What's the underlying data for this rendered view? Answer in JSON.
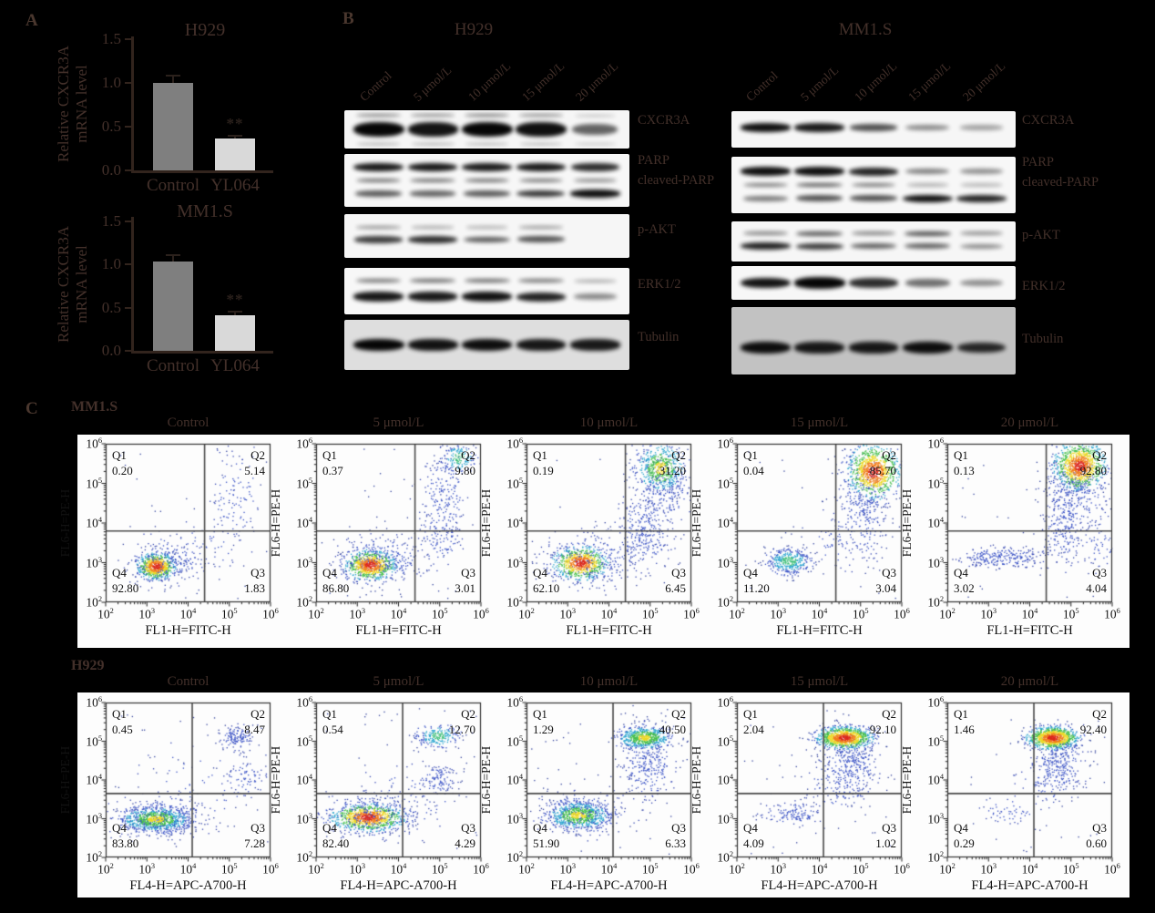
{
  "figure": {
    "panels": {
      "a": "A",
      "b": "B",
      "c": "C"
    }
  },
  "colors": {
    "background": "#000000",
    "figure_text_brown": "#43302a",
    "bar_control": "#7f7f7f",
    "bar_treated": "#d9d9d9",
    "axis_line": "#32241d",
    "plot_text": "#121212",
    "quadrant_line": "#4a4a4a",
    "density_hot_core": "#dc2a1e",
    "density_cold": "#3c54c6"
  },
  "panel_a": {
    "ylabel_line1": "Relative CXCR3A",
    "ylabel_line2": "mRNA level",
    "yticks": [
      "0.0",
      "0.5",
      "1.0",
      "1.5"
    ],
    "significance": "**"
  },
  "chart_data": [
    {
      "type": "bar",
      "title": "H929",
      "ylabel": "Relative CXCR3A mRNA level",
      "categories": [
        "Control",
        "YL064"
      ],
      "values": [
        1.0,
        0.36
      ],
      "errors": [
        0.07,
        0.03
      ],
      "annotations": [
        "",
        "**"
      ],
      "ylim": [
        0,
        1.5
      ],
      "yticks": [
        0.0,
        0.5,
        1.0,
        1.5
      ]
    },
    {
      "type": "bar",
      "title": "MM1.S",
      "ylabel": "Relative CXCR3A mRNA level",
      "categories": [
        "Control",
        "YL064"
      ],
      "values": [
        1.03,
        0.41
      ],
      "errors": [
        0.07,
        0.03
      ],
      "annotations": [
        "",
        "**"
      ],
      "ylim": [
        0,
        1.5
      ],
      "yticks": [
        0.0,
        0.5,
        1.0,
        1.5
      ]
    },
    {
      "type": "scatter",
      "cell_line": "MM1.S",
      "xlabel": "FL1-H=FITC-H",
      "ylabel": "FL6-H=PE-H",
      "xscale": "log",
      "yscale": "log",
      "xlim": [
        100,
        1000000
      ],
      "ylim": [
        100,
        1000000
      ],
      "tick_exponents": [
        2,
        3,
        4,
        5,
        6
      ],
      "plots": [
        {
          "condition": "Control",
          "quadrants": {
            "Q1": "0.20",
            "Q2": "5.14",
            "Q3": "1.83",
            "Q4": "92.80"
          }
        },
        {
          "condition": "5 μmol/L",
          "quadrants": {
            "Q1": "0.37",
            "Q2": "9.80",
            "Q3": "3.01",
            "Q4": "86.80"
          }
        },
        {
          "condition": "10 μmol/L",
          "quadrants": {
            "Q1": "0.19",
            "Q2": "31.20",
            "Q3": "6.45",
            "Q4": "62.10"
          }
        },
        {
          "condition": "15 μmol/L",
          "quadrants": {
            "Q1": "0.04",
            "Q2": "85.70",
            "Q3": "3.04",
            "Q4": "11.20"
          }
        },
        {
          "condition": "20 μmol/L",
          "quadrants": {
            "Q1": "0.13",
            "Q2": "92.80",
            "Q3": "4.04",
            "Q4": "3.02"
          }
        }
      ]
    },
    {
      "type": "scatter",
      "cell_line": "H929",
      "xlabel": "FL4-H=APC-A700-H",
      "ylabel": "FL6-H=PE-H",
      "xscale": "log",
      "yscale": "log",
      "xlim": [
        100,
        1000000
      ],
      "ylim": [
        100,
        1000000
      ],
      "tick_exponents": [
        2,
        3,
        4,
        5,
        6
      ],
      "plots": [
        {
          "condition": "Control",
          "quadrants": {
            "Q1": "0.45",
            "Q2": "8.47",
            "Q3": "7.28",
            "Q4": "83.80"
          }
        },
        {
          "condition": "5 μmol/L",
          "quadrants": {
            "Q1": "0.54",
            "Q2": "12.70",
            "Q3": "4.29",
            "Q4": "82.40"
          }
        },
        {
          "condition": "10 μmol/L",
          "quadrants": {
            "Q1": "1.29",
            "Q2": "40.50",
            "Q3": "6.33",
            "Q4": "51.90"
          }
        },
        {
          "condition": "15 μmol/L",
          "quadrants": {
            "Q1": "2.04",
            "Q2": "92.10",
            "Q3": "1.02",
            "Q4": "4.09"
          }
        },
        {
          "condition": "20 μmol/L",
          "quadrants": {
            "Q1": "1.46",
            "Q2": "92.40",
            "Q3": "0.60",
            "Q4": "0.29"
          }
        }
      ]
    }
  ],
  "panel_b": {
    "blots": [
      {
        "title": "H929",
        "lane_labels": [
          "Control",
          "5 μmol/L",
          "10 μmol/L",
          "15 μmol/L",
          "20 μmol/L"
        ],
        "proteins": [
          "CXCR3A",
          "PARP",
          "cleaved-PARP",
          "p-AKT",
          "ERK1/2",
          "Tubulin"
        ],
        "strips": [
          {
            "bands": [
              {
                "oy": 0.5,
                "th": 15,
                "int": [
                  1,
                  0.92,
                  1,
                  0.95,
                  0.5
                ]
              },
              {
                "oy": 0.14,
                "th": 4,
                "int": [
                  0.4,
                  0.35,
                  0.45,
                  0.35,
                  0.1
                ]
              },
              {
                "oy": 0.88,
                "th": 3,
                "int": [
                  0.25,
                  0.25,
                  0.2,
                  0.2,
                  0.05
                ]
              }
            ]
          },
          {
            "bands": [
              {
                "oy": 0.25,
                "th": 9,
                "int": [
                  0.9,
                  0.9,
                  0.88,
                  0.9,
                  0.8
                ]
              },
              {
                "oy": 0.5,
                "th": 6,
                "int": [
                  0.45,
                  0.45,
                  0.45,
                  0.4,
                  0.3
                ]
              },
              {
                "oy": 0.75,
                "th": 8,
                "int": [
                  0.55,
                  0.5,
                  0.55,
                  0.75,
                  0.95
                ]
              }
            ]
          },
          {
            "bands": [
              {
                "oy": 0.3,
                "th": 4,
                "int": [
                  0.35,
                  0.2,
                  0.15,
                  0.3,
                  0
                ]
              },
              {
                "oy": 0.58,
                "th": 8,
                "int": [
                  0.7,
                  0.8,
                  0.55,
                  0.6,
                  0
                ]
              }
            ]
          },
          {
            "bands": [
              {
                "oy": 0.28,
                "th": 5,
                "int": [
                  0.45,
                  0.5,
                  0.5,
                  0.45,
                  0.2
                ]
              },
              {
                "oy": 0.62,
                "th": 10,
                "int": [
                  0.9,
                  0.88,
                  0.92,
                  0.85,
                  0.3
                ]
              }
            ]
          },
          {
            "bands": [
              {
                "oy": 0.5,
                "th": 12,
                "int": [
                  1,
                  0.92,
                  0.95,
                  0.9,
                  0.88
                ]
              }
            ]
          }
        ]
      },
      {
        "title": "MM1.S",
        "lane_labels": [
          "Control",
          "5 μmol/L",
          "10 μmol/L",
          "15 μmol/L",
          "20 μmol/L"
        ],
        "proteins": [
          "CXCR3A",
          "PARP",
          "cleaved-PARP",
          "p-AKT",
          "ERK1/2",
          "Tubulin"
        ],
        "strips": [
          {
            "bands": [
              {
                "oy": 0.45,
                "th": 9,
                "int": [
                  0.95,
                  0.9,
                  0.6,
                  0.3,
                  0.18
                ]
              }
            ]
          },
          {
            "bands": [
              {
                "oy": 0.26,
                "th": 9,
                "int": [
                  0.95,
                  0.95,
                  0.85,
                  0.35,
                  0.28
                ]
              },
              {
                "oy": 0.5,
                "th": 6,
                "int": [
                  0.38,
                  0.55,
                  0.4,
                  0.12,
                  0.08
                ]
              },
              {
                "oy": 0.74,
                "th": 8,
                "int": [
                  0.38,
                  0.6,
                  0.6,
                  0.95,
                  0.85
                ]
              }
            ]
          },
          {
            "bands": [
              {
                "oy": 0.3,
                "th": 6,
                "int": [
                  0.35,
                  0.55,
                  0.35,
                  0.6,
                  0.3
                ]
              },
              {
                "oy": 0.62,
                "th": 8,
                "int": [
                  0.85,
                  0.7,
                  0.5,
                  0.5,
                  0.3
                ]
              }
            ]
          },
          {
            "bands": [
              {
                "oy": 0.5,
                "th": 11,
                "int": [
                  0.92,
                  1,
                  0.8,
                  0.45,
                  0.28
                ]
              }
            ]
          },
          {
            "bands": [
              {
                "oy": 0.6,
                "th": 12,
                "int": [
                  0.95,
                  0.88,
                  0.88,
                  0.95,
                  0.8
                ]
              }
            ]
          }
        ]
      }
    ]
  },
  "panel_c": {
    "quadrant_labels": [
      "Q1",
      "Q2",
      "Q3",
      "Q4"
    ],
    "rows": [
      {
        "header": "MM1.S",
        "cross": {
          "x": 4.4,
          "y": 3.8
        },
        "clusters": [
          [
            [
              3.22,
              2.92,
              0.22,
              0.16,
              650,
              "hot"
            ],
            [
              3.45,
              3.0,
              0.45,
              0.28,
              220,
              "cold"
            ],
            [
              4.1,
              3.35,
              0.6,
              0.35,
              70,
              "cold"
            ],
            [
              5.15,
              4.75,
              0.32,
              0.6,
              110,
              "cold"
            ],
            [
              0,
              0,
              0,
              0,
              30,
              "noise"
            ]
          ],
          [
            [
              3.3,
              2.95,
              0.3,
              0.18,
              750,
              "hot"
            ],
            [
              3.55,
              3.1,
              0.55,
              0.32,
              280,
              "cold"
            ],
            [
              4.95,
              3.6,
              0.3,
              0.35,
              120,
              "cold"
            ],
            [
              5.1,
              4.7,
              0.28,
              0.55,
              180,
              "cold"
            ],
            [
              5.45,
              5.65,
              0.22,
              0.2,
              160,
              "cool"
            ],
            [
              0,
              0,
              0,
              0,
              30,
              "noise"
            ]
          ],
          [
            [
              3.3,
              3.0,
              0.32,
              0.2,
              700,
              "hot"
            ],
            [
              3.6,
              3.1,
              0.6,
              0.35,
              250,
              "cold"
            ],
            [
              4.85,
              3.8,
              0.35,
              0.5,
              280,
              "cold"
            ],
            [
              5.25,
              5.4,
              0.3,
              0.32,
              550,
              "warm"
            ],
            [
              5.35,
              4.9,
              0.35,
              0.5,
              200,
              "cold"
            ],
            [
              0,
              0,
              0,
              0,
              30,
              "noise"
            ]
          ],
          [
            [
              3.25,
              3.05,
              0.28,
              0.17,
              380,
              "cool"
            ],
            [
              5.3,
              5.3,
              0.3,
              0.33,
              900,
              "hot"
            ],
            [
              5.05,
              4.4,
              0.3,
              0.6,
              280,
              "cold"
            ],
            [
              4.6,
              3.6,
              0.5,
              0.4,
              80,
              "cold"
            ],
            [
              0,
              0,
              0,
              0,
              30,
              "noise"
            ]
          ],
          [
            [
              3.3,
              3.15,
              0.5,
              0.13,
              260,
              "cold"
            ],
            [
              5.2,
              5.45,
              0.3,
              0.3,
              950,
              "hot"
            ],
            [
              5.1,
              4.8,
              0.38,
              0.5,
              300,
              "cold"
            ],
            [
              4.8,
              3.9,
              0.25,
              0.5,
              200,
              "cold"
            ],
            [
              5.7,
              3.5,
              0.25,
              0.35,
              60,
              "cold"
            ],
            [
              0,
              0,
              0,
              0,
              30,
              "noise"
            ]
          ]
        ]
      },
      {
        "header": "H929",
        "cross": {
          "x": 4.1,
          "y": 3.65
        },
        "clusters": [
          [
            [
              3.2,
              3.0,
              0.42,
              0.16,
              850,
              "warm"
            ],
            [
              3.3,
              3.05,
              0.65,
              0.28,
              250,
              "cold"
            ],
            [
              5.15,
              5.1,
              0.2,
              0.16,
              140,
              "cold"
            ],
            [
              5.35,
              4.05,
              0.25,
              0.22,
              70,
              "cold"
            ],
            [
              4.3,
              3.9,
              0.8,
              0.6,
              60,
              "cold"
            ],
            [
              0,
              0,
              0,
              0,
              40,
              "noise"
            ]
          ],
          [
            [
              3.25,
              3.05,
              0.42,
              0.17,
              900,
              "hot"
            ],
            [
              3.35,
              3.1,
              0.65,
              0.3,
              260,
              "cold"
            ],
            [
              4.95,
              5.15,
              0.26,
              0.16,
              220,
              "cool"
            ],
            [
              4.95,
              4.0,
              0.22,
              0.2,
              110,
              "cold"
            ],
            [
              4.3,
              3.6,
              0.6,
              0.5,
              60,
              "cold"
            ],
            [
              0,
              0,
              0,
              0,
              40,
              "noise"
            ]
          ],
          [
            [
              3.25,
              3.1,
              0.38,
              0.18,
              750,
              "warm"
            ],
            [
              3.4,
              3.15,
              0.6,
              0.3,
              200,
              "cold"
            ],
            [
              4.85,
              5.1,
              0.32,
              0.15,
              600,
              "warm"
            ],
            [
              4.95,
              4.4,
              0.3,
              0.5,
              280,
              "cold"
            ],
            [
              0,
              0,
              0,
              0,
              40,
              "noise"
            ]
          ],
          [
            [
              4.6,
              5.1,
              0.32,
              0.14,
              950,
              "hot"
            ],
            [
              4.75,
              4.45,
              0.33,
              0.45,
              320,
              "cold"
            ],
            [
              4.4,
              3.9,
              0.45,
              0.35,
              100,
              "cold"
            ],
            [
              3.3,
              3.15,
              0.35,
              0.15,
              130,
              "cold"
            ],
            [
              0,
              0,
              0,
              0,
              40,
              "noise"
            ]
          ],
          [
            [
              4.55,
              5.1,
              0.3,
              0.14,
              950,
              "hot"
            ],
            [
              4.7,
              4.5,
              0.3,
              0.42,
              280,
              "cold"
            ],
            [
              4.45,
              3.95,
              0.4,
              0.3,
              80,
              "cold"
            ],
            [
              3.5,
              3.2,
              0.35,
              0.18,
              50,
              "cold"
            ],
            [
              0,
              0,
              0,
              0,
              30,
              "noise"
            ]
          ]
        ]
      }
    ]
  }
}
